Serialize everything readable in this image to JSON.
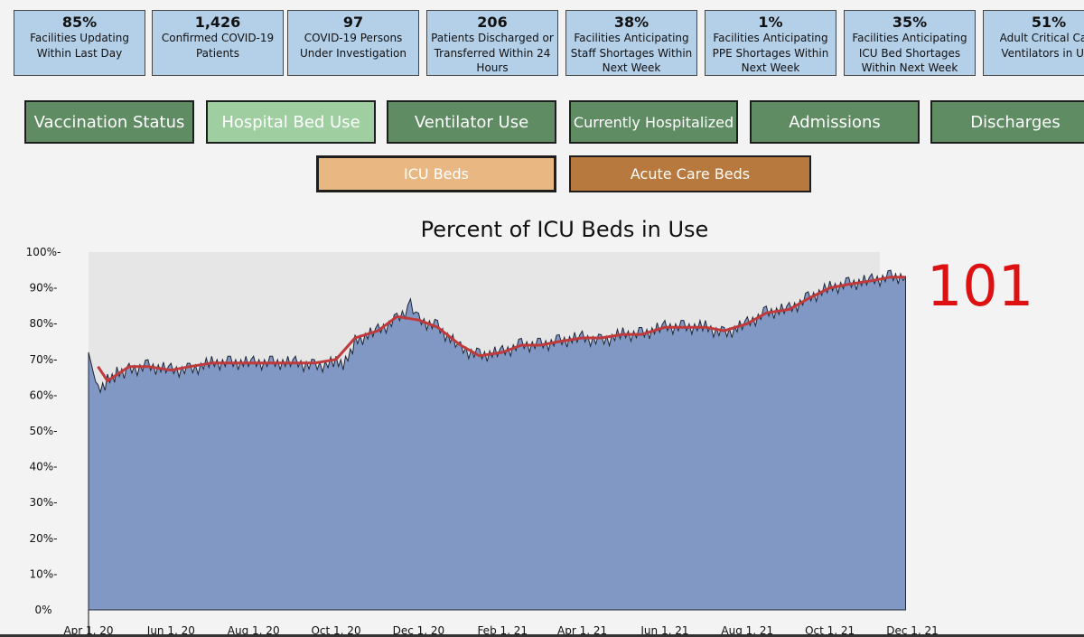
{
  "kpis": [
    {
      "value": "85%",
      "label": "Facilities Updating Within Last Day"
    },
    {
      "value": "1,426",
      "label": "Confirmed COVID-19 Patients"
    },
    {
      "value": "97",
      "label": "COVID-19 Persons Under Investigation"
    },
    {
      "value": "206",
      "label": "Patients Discharged or Transferred Within 24 Hours"
    },
    {
      "value": "38%",
      "label": "Facilities Anticipating Staff Shortages Within Next Week"
    },
    {
      "value": "1%",
      "label": "Facilities Anticipating PPE Shortages Within Next Week"
    },
    {
      "value": "35%",
      "label": "Facilities Anticipating ICU Bed Shortages Within Next Week"
    },
    {
      "value": "51%",
      "label": "Adult Critical Care Ventilators in Use"
    }
  ],
  "nav": {
    "vaccination": "Vaccination Status",
    "bed_use": "Hospital Bed Use",
    "ventilator": "Ventilator Use",
    "hospitalized": "Currently Hospitalized",
    "admissions": "Admissions",
    "discharges": "Discharges"
  },
  "sub": {
    "icu": "ICU Beds",
    "acute": "Acute Care Beds"
  },
  "colors": {
    "kpi_bg": "#b4cfe8",
    "nav_green": "#5f8c62",
    "nav_active": "#9fcfa1",
    "icu_bg": "#e9b882",
    "acute_bg": "#b8793f",
    "area_fill": "#8198c5",
    "avg_line": "#c0393b",
    "annotation": "#dd1111"
  },
  "annotation": "101",
  "chart_data": {
    "type": "area",
    "title": "Percent of ICU Beds in Use",
    "ylim": [
      0,
      100
    ],
    "yticks": [
      "0%",
      "10%-",
      "20%-",
      "30%-",
      "40%-",
      "50%-",
      "60%-",
      "70%-",
      "80%-",
      "90%-",
      "100%-"
    ],
    "xticks": [
      "Apr 1, 20",
      "Jun 1, 20",
      "Aug 1, 20",
      "Oct 1, 20",
      "Dec 1, 20",
      "Feb 1, 21",
      "Apr 1, 21",
      "Jun 1, 21",
      "Aug 1, 21",
      "Oct 1, 21",
      "Dec 1, 21"
    ],
    "x_range": [
      "2020-04-01",
      "2021-12-01"
    ],
    "series": [
      {
        "dates": [
          "2020-04-01",
          "2020-04-08",
          "2020-04-15",
          "2020-04-22",
          "2020-05-01",
          "2020-05-15",
          "2020-06-01",
          "2020-06-15",
          "2020-07-01",
          "2020-07-15",
          "2020-08-01",
          "2020-08-15",
          "2020-09-01",
          "2020-09-15",
          "2020-10-01",
          "2020-10-08",
          "2020-10-15",
          "2020-11-01",
          "2020-11-15",
          "2020-11-25",
          "2020-12-01",
          "2020-12-15",
          "2021-01-01",
          "2021-01-15",
          "2021-02-01",
          "2021-02-15",
          "2021-03-01",
          "2021-03-15",
          "2021-04-01",
          "2021-04-15",
          "2021-05-01",
          "2021-05-15",
          "2021-06-01",
          "2021-06-15",
          "2021-07-01",
          "2021-07-15",
          "2021-08-01",
          "2021-08-15",
          "2021-09-01",
          "2021-09-15",
          "2021-10-01",
          "2021-10-15",
          "2021-11-01",
          "2021-11-15",
          "2021-11-26"
        ],
        "values": [
          72,
          61,
          64,
          66,
          67,
          68,
          67,
          67,
          69,
          69,
          69,
          69,
          69,
          68,
          69,
          69,
          75,
          78,
          81,
          85,
          81,
          79,
          73,
          71,
          72,
          74,
          74,
          75,
          76,
          75,
          77,
          77,
          79,
          79,
          79,
          77,
          80,
          83,
          84,
          87,
          90,
          91,
          92,
          93,
          93
        ]
      },
      {
        "dates": [
          "2020-04-08",
          "2020-04-15",
          "2020-05-01",
          "2020-05-15",
          "2020-06-01",
          "2020-06-15",
          "2020-07-01",
          "2020-07-15",
          "2020-08-01",
          "2020-08-15",
          "2020-09-01",
          "2020-09-15",
          "2020-10-01",
          "2020-10-15",
          "2020-11-01",
          "2020-11-15",
          "2020-12-01",
          "2020-12-15",
          "2021-01-01",
          "2021-01-15",
          "2021-02-01",
          "2021-02-15",
          "2021-03-01",
          "2021-03-15",
          "2021-04-01",
          "2021-04-15",
          "2021-05-01",
          "2021-05-15",
          "2021-06-01",
          "2021-06-15",
          "2021-07-01",
          "2021-07-15",
          "2021-08-01",
          "2021-08-15",
          "2021-09-01",
          "2021-09-15",
          "2021-10-01",
          "2021-10-15",
          "2021-11-01",
          "2021-11-15",
          "2021-11-26"
        ],
        "values": [
          68,
          64,
          68,
          68,
          67,
          68,
          69,
          69,
          69,
          69,
          69,
          69,
          70,
          76,
          78,
          82,
          81,
          79,
          74,
          71,
          72,
          74,
          74,
          75,
          76,
          76,
          77,
          77,
          79,
          79,
          79,
          78,
          80,
          83,
          84,
          87,
          90,
          91,
          92,
          93,
          93
        ]
      }
    ]
  }
}
